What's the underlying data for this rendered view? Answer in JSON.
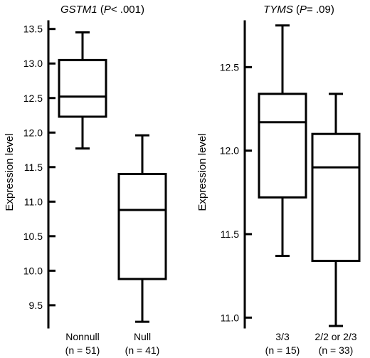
{
  "chart_data": [
    {
      "type": "box",
      "title_gene": "GSTM1",
      "title_p_letter": "P",
      "title_p_value": "< .001",
      "ylabel": "Expression level",
      "ylim": [
        9.2,
        13.6
      ],
      "yticks": [
        9.5,
        10.0,
        10.5,
        11.0,
        11.5,
        12.0,
        12.5,
        13.0,
        13.5
      ],
      "ytick_labels": [
        "9.5",
        "10.0",
        "10.5",
        "11.0",
        "11.5",
        "12.0",
        "12.5",
        "13.0",
        "13.5"
      ],
      "categories": [
        {
          "label": "Nonnull",
          "n_label": "(n = 51)",
          "whisker_low": 11.77,
          "q1": 12.23,
          "median": 12.52,
          "q3": 13.05,
          "whisker_high": 13.45
        },
        {
          "label": "Null",
          "n_label": "(n = 41)",
          "whisker_low": 9.26,
          "q1": 9.88,
          "median": 10.88,
          "q3": 11.4,
          "whisker_high": 11.96
        }
      ]
    },
    {
      "type": "box",
      "title_gene": "TYMS",
      "title_p_letter": "P",
      "title_p_value": "= .09",
      "ylabel": "Expression level",
      "ylim": [
        10.95,
        12.77
      ],
      "yticks": [
        11.0,
        11.5,
        12.0,
        12.5
      ],
      "ytick_labels": [
        "11.0",
        "11.5",
        "12.0",
        "12.5"
      ],
      "categories": [
        {
          "label": "3/3",
          "n_label": "(n = 15)",
          "whisker_low": 11.37,
          "q1": 11.72,
          "median": 12.17,
          "q3": 12.34,
          "whisker_high": 12.75
        },
        {
          "label": "2/2 or 2/3",
          "n_label": "(n = 33)",
          "whisker_low": 10.95,
          "q1": 11.34,
          "median": 11.9,
          "q3": 12.1,
          "whisker_high": 12.34
        }
      ]
    }
  ]
}
